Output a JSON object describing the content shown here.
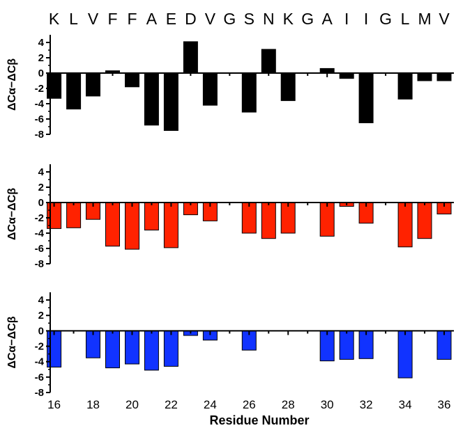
{
  "sequence": [
    "K",
    "L",
    "V",
    "F",
    "F",
    "A",
    "E",
    "D",
    "V",
    "G",
    "S",
    "N",
    "K",
    "G",
    "A",
    "I",
    "I",
    "G",
    "L",
    "M",
    "V"
  ],
  "xlabel": "Residue Number",
  "chart_data": [
    {
      "type": "bar",
      "ylabel": "ΔCα−ΔCβ",
      "color": "#000000",
      "ylim": [
        -8,
        5
      ],
      "yticks": [
        4,
        2,
        0,
        -2,
        -4,
        -6,
        -8
      ],
      "xlim": [
        15.8,
        36.5
      ],
      "xticks": [
        16,
        18,
        20,
        22,
        24,
        26,
        28,
        30,
        32,
        34,
        36
      ],
      "x": [
        16,
        17,
        18,
        19,
        20,
        21,
        22,
        23,
        24,
        26,
        27,
        28,
        30,
        31,
        32,
        34,
        35,
        36
      ],
      "values": [
        -3.3,
        -4.7,
        -3.0,
        0.3,
        -1.8,
        -6.8,
        -7.5,
        4.1,
        -4.2,
        -5.1,
        3.1,
        -3.6,
        0.6,
        -0.7,
        -6.5,
        -3.4,
        -1.0,
        -1.0
      ]
    },
    {
      "type": "bar",
      "ylabel": "ΔCα−ΔCβ",
      "color": "#ff2200",
      "ylim": [
        -8,
        5
      ],
      "yticks": [
        4,
        2,
        0,
        -2,
        -4,
        -6,
        -8
      ],
      "xlim": [
        15.8,
        36.5
      ],
      "xticks": [
        16,
        18,
        20,
        22,
        24,
        26,
        28,
        30,
        32,
        34,
        36
      ],
      "x": [
        16,
        17,
        18,
        19,
        20,
        21,
        22,
        23,
        24,
        26,
        27,
        28,
        30,
        31,
        32,
        34,
        35,
        36
      ],
      "values": [
        -3.4,
        -3.3,
        -2.2,
        -5.7,
        -6.1,
        -3.6,
        -5.9,
        -1.6,
        -2.4,
        -4.0,
        -4.7,
        -4.0,
        -4.4,
        -0.5,
        -2.7,
        -5.8,
        -4.7,
        -1.5
      ]
    },
    {
      "type": "bar",
      "ylabel": "ΔCα−ΔCβ",
      "color": "#1133ff",
      "ylim": [
        -8,
        5
      ],
      "yticks": [
        4,
        2,
        0,
        -2,
        -4,
        -6,
        -8
      ],
      "xlim": [
        15.8,
        36.5
      ],
      "xticks": [
        16,
        18,
        20,
        22,
        24,
        26,
        28,
        30,
        32,
        34,
        36
      ],
      "x": [
        16,
        18,
        19,
        20,
        21,
        22,
        23,
        24,
        26,
        30,
        31,
        32,
        34,
        36
      ],
      "values": [
        -4.7,
        -3.5,
        -4.8,
        -4.3,
        -5.1,
        -4.6,
        -0.6,
        -1.2,
        -2.5,
        -3.9,
        -3.7,
        -3.6,
        -6.1,
        -3.7
      ]
    }
  ]
}
